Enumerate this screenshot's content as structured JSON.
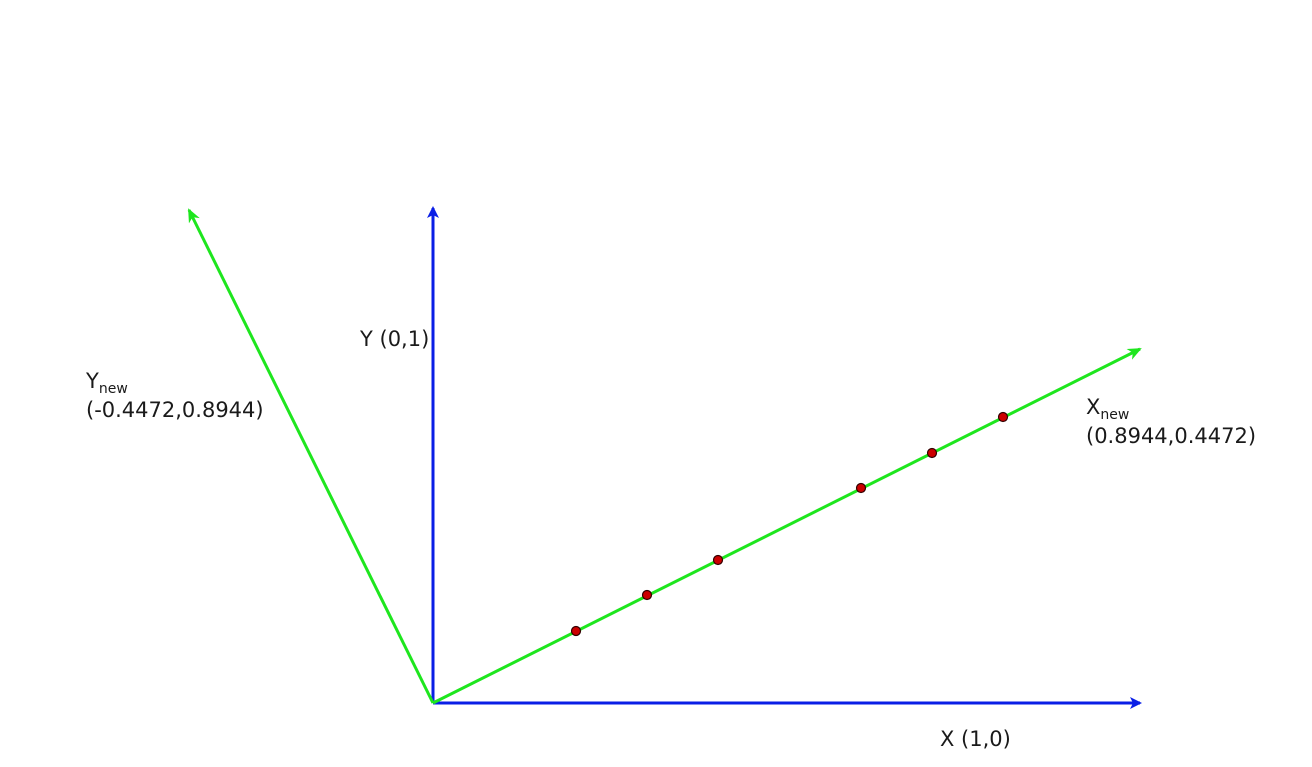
{
  "colors": {
    "axes": "#0a1ee6",
    "rotated_axes": "#1ee61e",
    "points": "#cc0000"
  },
  "labels": {
    "x_axis": "X (1,0)",
    "y_axis": "Y (0,1)",
    "x_new": {
      "main": "X",
      "sub": "new",
      "coords": "(0.8944,0.4472)"
    },
    "y_new": {
      "main": "Y",
      "sub": "new",
      "coords": "(-0.4472,0.8944)"
    }
  },
  "points_on_xnew": {
    "count": 6
  }
}
